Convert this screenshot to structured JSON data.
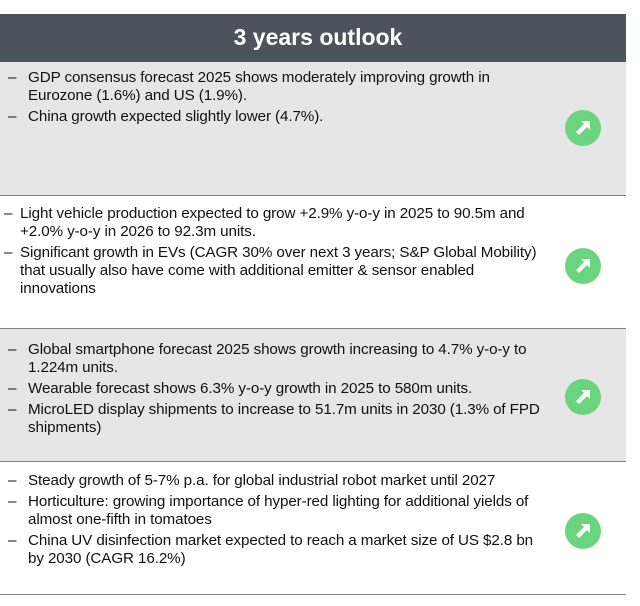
{
  "header": {
    "title": "3 years outlook"
  },
  "sections": [
    {
      "bullets": [
        "GDP consensus forecast 2025 shows moderately improving growth in Eurozone (1.6%) and US (1.9%).",
        "China growth expected slightly lower (4.7%)."
      ],
      "trend_icon": "arrow-up-right-icon"
    },
    {
      "bullets": [
        "Light vehicle production expected to grow +2.9% y-o-y in 2025 to 90.5m and +2.0% y-o-y in 2026 to 92.3m units.",
        "Significant growth in EVs (CAGR 30% over next 3 years; S&P Global Mobility) that usually also have come with additional emitter & sensor enabled innovations"
      ],
      "trend_icon": "arrow-up-right-icon"
    },
    {
      "bullets": [
        "Global smartphone forecast 2025 shows growth increasing to 4.7% y-o-y to 1.224m units.",
        "Wearable forecast shows 6.3% y-o-y growth in 2025 to 580m units.",
        "MicroLED display shipments to increase to 51.7m units in 2030 (1.3% of FPD shipments)"
      ],
      "trend_icon": "arrow-up-right-icon"
    },
    {
      "bullets": [
        "Steady growth of 5-7% p.a. for global industrial robot market until 2027",
        "Horticulture: growing importance of hyper-red lighting for additional yields of almost one-fifth in tomatoes",
        "China UV disinfection market expected to reach a market size of US $2.8 bn by 2030 (CAGR 16.2%)"
      ],
      "trend_icon": "arrow-up-right-icon"
    }
  ],
  "colors": {
    "header_bg": "#4b535d",
    "header_text": "#ffffff",
    "shaded_bg": "#e6e6e6",
    "trend_green": "#6bd47e"
  }
}
